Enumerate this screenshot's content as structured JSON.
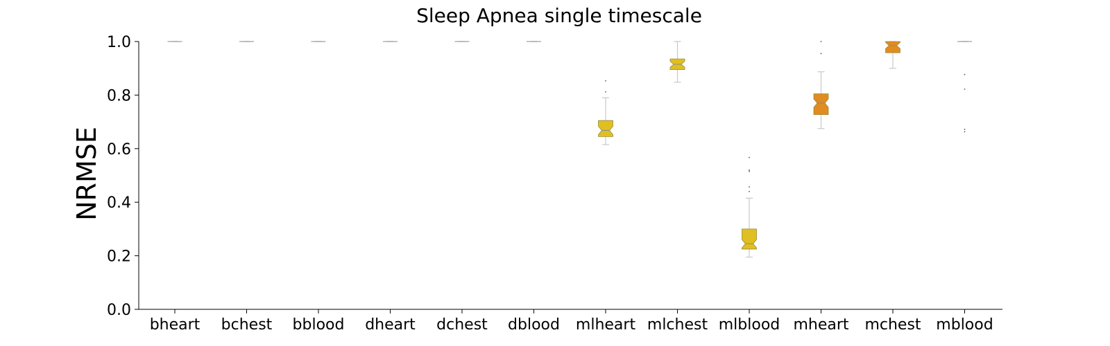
{
  "chart_data": {
    "type": "boxplot",
    "title": "Sleep Apnea single timescale",
    "xlabel": "",
    "ylabel": "NRMSE",
    "ylim": [
      0.0,
      1.0
    ],
    "yticks": [
      "0.0",
      "0.2",
      "0.4",
      "0.6",
      "0.8",
      "1.0"
    ],
    "notched": true,
    "grid": false,
    "categories": [
      "bheart",
      "bchest",
      "bblood",
      "dheart",
      "dchest",
      "dblood",
      "mlheart",
      "mlchest",
      "mlblood",
      "mheart",
      "mchest",
      "mblood"
    ],
    "series": [
      {
        "category": "bheart",
        "whislo": 1.0,
        "q1": 1.0,
        "median": 1.0,
        "q3": 1.0,
        "whishi": 1.0,
        "fliers": [],
        "color": "#e0c020"
      },
      {
        "category": "bchest",
        "whislo": 1.0,
        "q1": 1.0,
        "median": 1.0,
        "q3": 1.0,
        "whishi": 1.0,
        "fliers": [],
        "color": "#e0c020"
      },
      {
        "category": "bblood",
        "whislo": 1.0,
        "q1": 1.0,
        "median": 1.0,
        "q3": 1.0,
        "whishi": 1.0,
        "fliers": [],
        "color": "#e0c020"
      },
      {
        "category": "dheart",
        "whislo": 1.0,
        "q1": 1.0,
        "median": 1.0,
        "q3": 1.0,
        "whishi": 1.0,
        "fliers": [],
        "color": "#e0c020"
      },
      {
        "category": "dchest",
        "whislo": 1.0,
        "q1": 1.0,
        "median": 1.0,
        "q3": 1.0,
        "whishi": 1.0,
        "fliers": [],
        "color": "#e0c020"
      },
      {
        "category": "dblood",
        "whislo": 1.0,
        "q1": 1.0,
        "median": 1.0,
        "q3": 1.0,
        "whishi": 1.0,
        "fliers": [],
        "color": "#e0c020"
      },
      {
        "category": "mlheart",
        "whislo": 0.615,
        "q1": 0.645,
        "median": 0.668,
        "q3": 0.705,
        "whishi": 0.79,
        "fliers": [
          0.812,
          0.853
        ],
        "color": "#e0c020"
      },
      {
        "category": "mlchest",
        "whislo": 0.848,
        "q1": 0.895,
        "median": 0.915,
        "q3": 0.935,
        "whishi": 1.0,
        "fliers": [],
        "color": "#e0c020"
      },
      {
        "category": "mlblood",
        "whislo": 0.195,
        "q1": 0.225,
        "median": 0.245,
        "q3": 0.3,
        "whishi": 0.415,
        "fliers": [
          0.44,
          0.457,
          0.515,
          0.52,
          0.567
        ],
        "color": "#e0c020"
      },
      {
        "category": "mheart",
        "whislo": 0.675,
        "q1": 0.727,
        "median": 0.77,
        "q3": 0.805,
        "whishi": 0.887,
        "fliers": [
          0.955,
          1.0
        ],
        "color": "#e08c20"
      },
      {
        "category": "mchest",
        "whislo": 0.9,
        "q1": 0.958,
        "median": 0.985,
        "q3": 1.0,
        "whishi": 1.0,
        "fliers": [],
        "color": "#e08c20"
      },
      {
        "category": "mblood",
        "whislo": 1.0,
        "q1": 1.0,
        "median": 1.0,
        "q3": 1.0,
        "whishi": 1.0,
        "fliers": [
          0.663,
          0.672,
          0.822,
          0.877
        ],
        "color": "#e0c020"
      }
    ]
  }
}
